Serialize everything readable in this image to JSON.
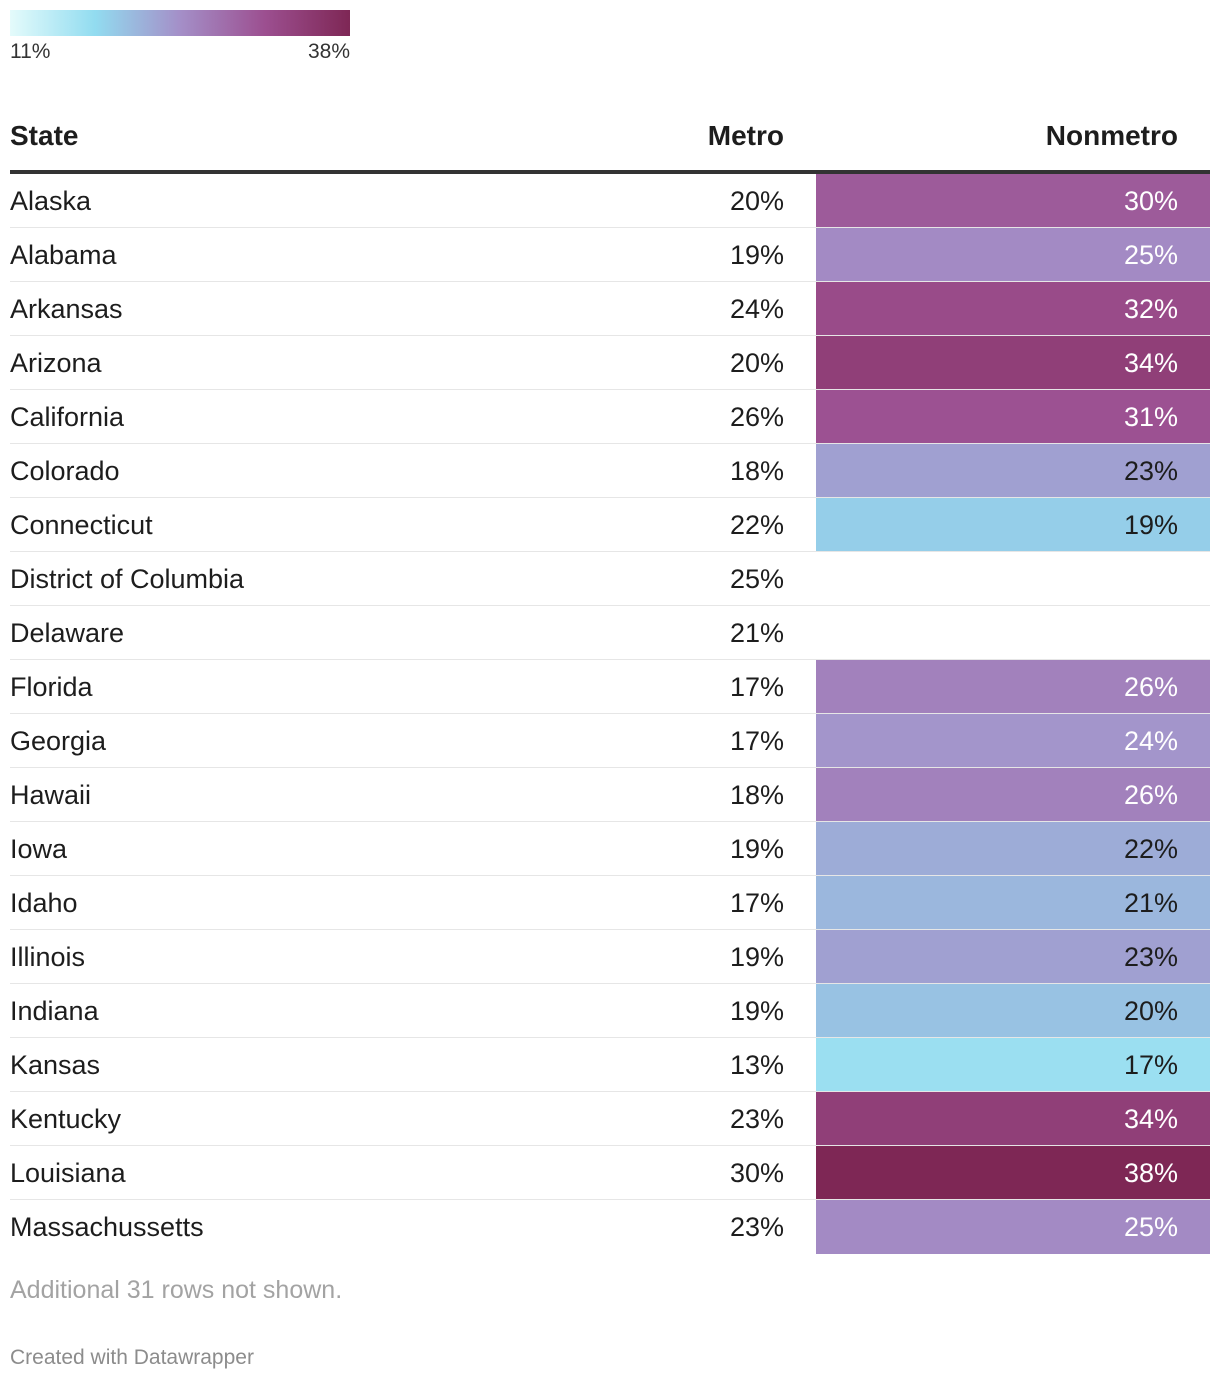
{
  "legend": {
    "min_label": "11%",
    "max_label": "38%",
    "min": 11,
    "max": 38,
    "gradient_colors": [
      "#e4fbfb",
      "#92dcf0",
      "#a48fc8",
      "#9c4f90",
      "#7e2755"
    ]
  },
  "chart_data": {
    "type": "table",
    "columns": [
      "State",
      "Metro",
      "Nonmetro"
    ],
    "rows": [
      {
        "state": "Alaska",
        "metro": "20%",
        "nonmetro": "30%",
        "nonmetro_value": 30
      },
      {
        "state": "Alabama",
        "metro": "19%",
        "nonmetro": "25%",
        "nonmetro_value": 25
      },
      {
        "state": "Arkansas",
        "metro": "24%",
        "nonmetro": "32%",
        "nonmetro_value": 32
      },
      {
        "state": "Arizona",
        "metro": "20%",
        "nonmetro": "34%",
        "nonmetro_value": 34
      },
      {
        "state": "California",
        "metro": "26%",
        "nonmetro": "31%",
        "nonmetro_value": 31
      },
      {
        "state": "Colorado",
        "metro": "18%",
        "nonmetro": "23%",
        "nonmetro_value": 23
      },
      {
        "state": "Connecticut",
        "metro": "22%",
        "nonmetro": "19%",
        "nonmetro_value": 19
      },
      {
        "state": "District of Columbia",
        "metro": "25%",
        "nonmetro": "",
        "nonmetro_value": null
      },
      {
        "state": "Delaware",
        "metro": "21%",
        "nonmetro": "",
        "nonmetro_value": null
      },
      {
        "state": "Florida",
        "metro": "17%",
        "nonmetro": "26%",
        "nonmetro_value": 26
      },
      {
        "state": "Georgia",
        "metro": "17%",
        "nonmetro": "24%",
        "nonmetro_value": 24
      },
      {
        "state": "Hawaii",
        "metro": "18%",
        "nonmetro": "26%",
        "nonmetro_value": 26
      },
      {
        "state": "Iowa",
        "metro": "19%",
        "nonmetro": "22%",
        "nonmetro_value": 22
      },
      {
        "state": "Idaho",
        "metro": "17%",
        "nonmetro": "21%",
        "nonmetro_value": 21
      },
      {
        "state": "Illinois",
        "metro": "19%",
        "nonmetro": "23%",
        "nonmetro_value": 23
      },
      {
        "state": "Indiana",
        "metro": "19%",
        "nonmetro": "20%",
        "nonmetro_value": 20
      },
      {
        "state": "Kansas",
        "metro": "13%",
        "nonmetro": "17%",
        "nonmetro_value": 17
      },
      {
        "state": "Kentucky",
        "metro": "23%",
        "nonmetro": "34%",
        "nonmetro_value": 34
      },
      {
        "state": "Louisiana",
        "metro": "30%",
        "nonmetro": "38%",
        "nonmetro_value": 38
      },
      {
        "state": "Massachussetts",
        "metro": "23%",
        "nonmetro": "25%",
        "nonmetro_value": 25
      }
    ]
  },
  "footnote": "Additional 31 rows not shown.",
  "credit": "Created with Datawrapper"
}
